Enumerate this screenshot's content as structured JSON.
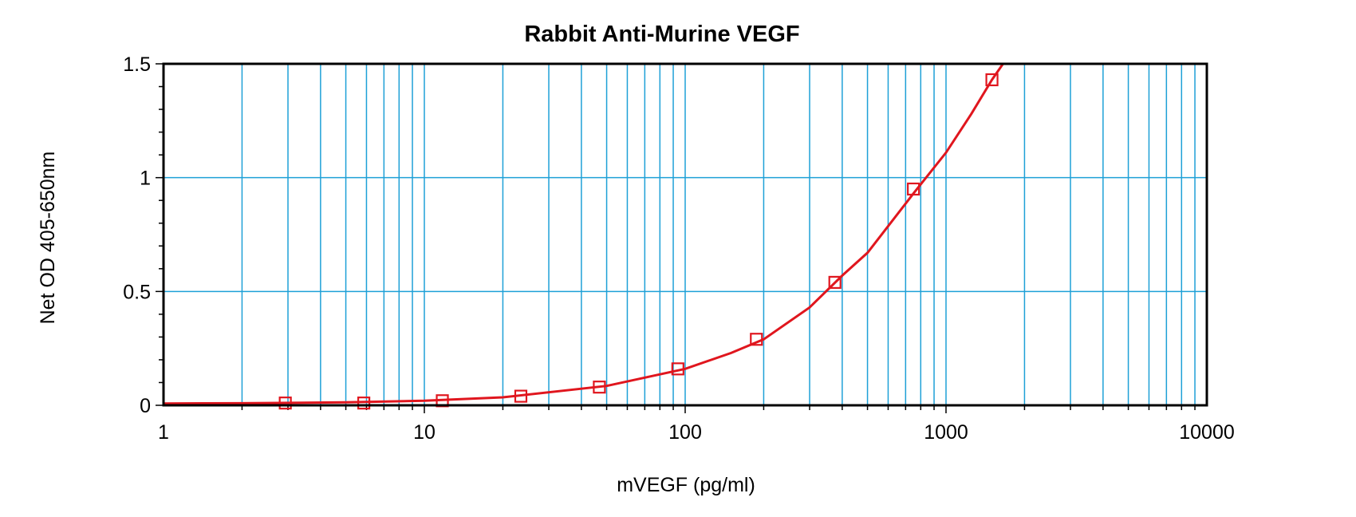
{
  "chart_data": {
    "type": "scatter",
    "title": "Rabbit Anti-Murine VEGF",
    "xlabel": "mVEGF (pg/ml)",
    "ylabel": "Net OD 405-650nm",
    "x_scale": "log",
    "xlim": [
      1,
      10000
    ],
    "ylim": [
      0,
      1.5
    ],
    "x_ticks": [
      1,
      10,
      100,
      1000,
      10000
    ],
    "x_tick_labels": [
      "1",
      "10",
      "100",
      "1000",
      "10000"
    ],
    "y_ticks": [
      0,
      0.5,
      1,
      1.5
    ],
    "y_tick_labels": [
      "0",
      "0.5",
      "1",
      "1.5"
    ],
    "grid": true,
    "series": [
      {
        "marker": "open-square",
        "color": "#e0161e",
        "x": [
          2.93,
          5.86,
          11.72,
          23.44,
          46.88,
          93.75,
          187.5,
          375,
          750,
          1500
        ],
        "y": [
          0.01,
          0.01,
          0.02,
          0.04,
          0.08,
          0.16,
          0.29,
          0.54,
          0.95,
          1.43
        ]
      }
    ],
    "fit_curve": {
      "color": "#e0161e",
      "x": [
        1,
        2,
        5,
        10,
        20,
        50,
        100,
        150,
        200,
        300,
        400,
        500,
        750,
        1000,
        1250,
        1500,
        1700
      ],
      "y": [
        0.008,
        0.009,
        0.013,
        0.02,
        0.035,
        0.085,
        0.16,
        0.23,
        0.29,
        0.43,
        0.57,
        0.67,
        0.93,
        1.11,
        1.28,
        1.43,
        1.52
      ]
    },
    "colors": {
      "grid": "#1ea0d7",
      "frame": "#000000",
      "series": "#e0161e"
    }
  }
}
